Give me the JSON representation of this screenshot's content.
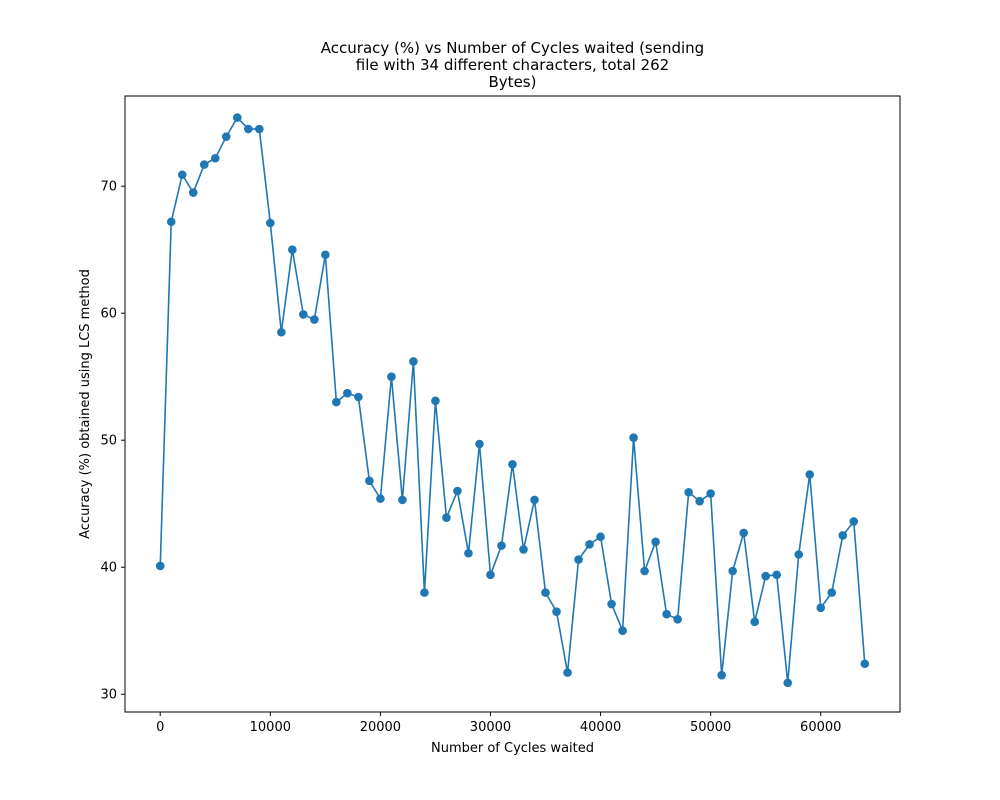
{
  "chart_data": {
    "type": "line",
    "title_lines": [
      "Accuracy (%) vs Number of Cycles waited (sending",
      "file with 34 different characters, total 262",
      "Bytes)"
    ],
    "xlabel": "Number of Cycles waited",
    "ylabel": "Accuracy (%) obtained using LCS method",
    "xlim": [
      -3200,
      67200
    ],
    "ylim": [
      28.6,
      77.1
    ],
    "xticks": [
      0,
      10000,
      20000,
      30000,
      40000,
      50000,
      60000
    ],
    "xtick_labels": [
      "0",
      "10000",
      "20000",
      "30000",
      "40000",
      "50000",
      "60000"
    ],
    "yticks": [
      30,
      40,
      50,
      60,
      70
    ],
    "ytick_labels": [
      "30",
      "40",
      "50",
      "60",
      "70"
    ],
    "grid": false,
    "colors": {
      "series": "#1f77b4",
      "axes": "#000000"
    },
    "series": [
      {
        "marker": "circle",
        "x": [
          0,
          1000,
          2000,
          3000,
          4000,
          5000,
          6000,
          7000,
          8000,
          9000,
          10000,
          11000,
          12000,
          13000,
          14000,
          15000,
          16000,
          17000,
          18000,
          19000,
          20000,
          21000,
          22000,
          23000,
          24000,
          25000,
          26000,
          27000,
          28000,
          29000,
          30000,
          31000,
          32000,
          33000,
          34000,
          35000,
          36000,
          37000,
          38000,
          39000,
          40000,
          41000,
          42000,
          43000,
          44000,
          45000,
          46000,
          47000,
          48000,
          49000,
          50000,
          51000,
          52000,
          53000,
          54000,
          55000,
          56000,
          57000,
          58000,
          59000,
          60000,
          61000,
          62000,
          63000,
          64000
        ],
        "y": [
          40.1,
          67.2,
          70.9,
          69.5,
          71.7,
          72.2,
          73.9,
          75.4,
          74.5,
          74.5,
          67.1,
          58.5,
          65.0,
          59.9,
          59.5,
          64.6,
          53.0,
          53.7,
          53.4,
          46.8,
          45.4,
          55.0,
          45.3,
          56.2,
          38.0,
          53.1,
          43.9,
          46.0,
          41.1,
          49.7,
          39.4,
          41.7,
          48.1,
          41.4,
          45.3,
          38.0,
          36.5,
          31.7,
          40.6,
          41.8,
          42.4,
          37.1,
          35.0,
          50.2,
          39.7,
          42.0,
          36.3,
          35.9,
          45.9,
          45.2,
          45.8,
          31.5,
          39.7,
          42.7,
          35.7,
          39.3,
          39.4,
          30.9,
          41.0,
          47.3,
          36.8,
          38.0,
          42.5,
          43.6,
          32.4
        ]
      }
    ]
  }
}
